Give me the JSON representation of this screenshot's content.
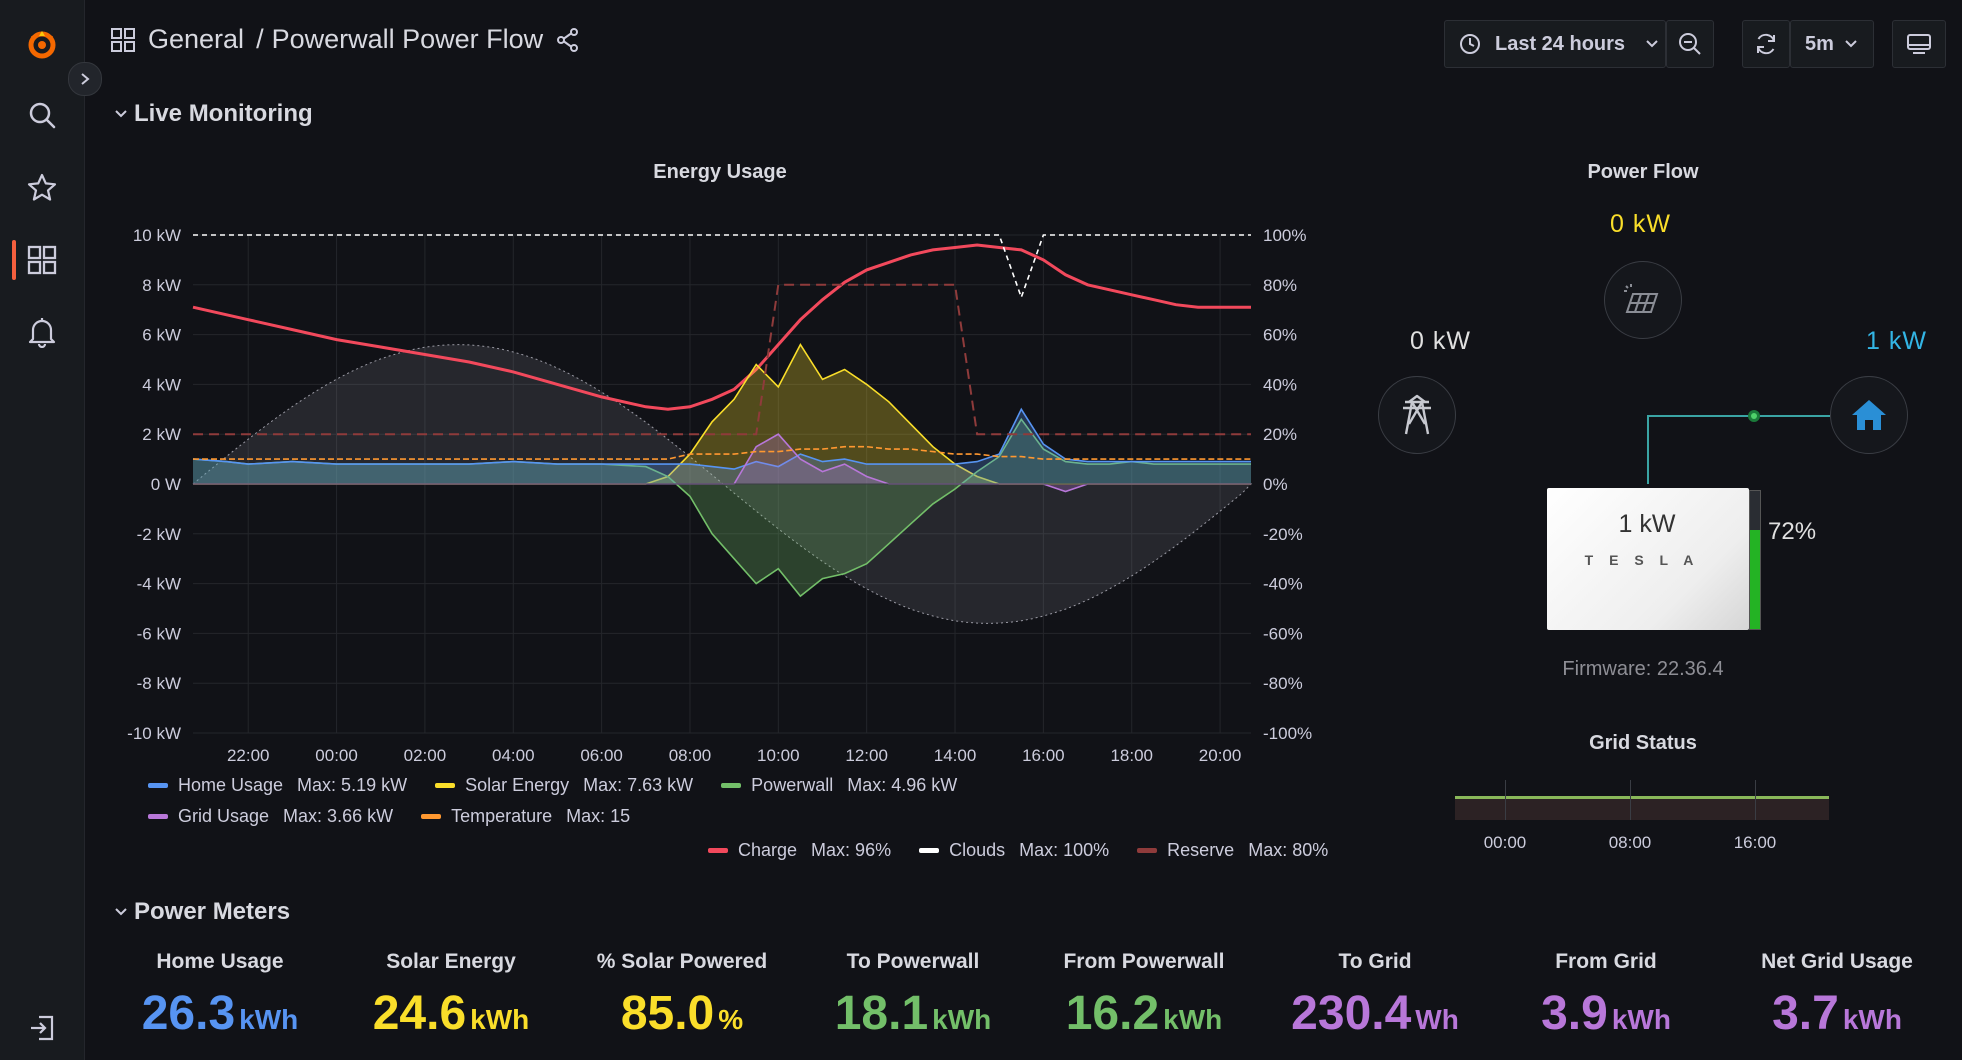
{
  "breadcrumb": {
    "folder": "General",
    "separator": "/",
    "dashboard": "Powerwall Power Flow"
  },
  "toolbar": {
    "time_range": "Last 24 hours",
    "refresh_interval": "5m"
  },
  "rows": {
    "live": "Live Monitoring",
    "meters": "Power Meters"
  },
  "energy_panel": {
    "title": "Energy Usage",
    "legend_primary": [
      {
        "name": "Home Usage",
        "max": "Max: 5.19 kW",
        "color": "#5794f2"
      },
      {
        "name": "Solar Energy",
        "max": "Max: 7.63 kW",
        "color": "#fade2a"
      },
      {
        "name": "Powerwall",
        "max": "Max: 4.96 kW",
        "color": "#73bf69"
      },
      {
        "name": "Grid Usage",
        "max": "Max: 3.66 kW",
        "color": "#b877d9"
      },
      {
        "name": "Temperature",
        "max": "Max: 15",
        "color": "#ff9830"
      }
    ],
    "legend_secondary": [
      {
        "name": "Charge",
        "max": "Max: 96%",
        "color": "#f2495c"
      },
      {
        "name": "Clouds",
        "max": "Max: 100%",
        "color": "#ffffff"
      },
      {
        "name": "Reserve",
        "max": "Max: 80%",
        "color": "#8f3b3b"
      }
    ]
  },
  "chart_data": {
    "type": "line",
    "title": "Energy Usage",
    "x_ticks": [
      "22:00",
      "00:00",
      "02:00",
      "04:00",
      "06:00",
      "08:00",
      "10:00",
      "12:00",
      "14:00",
      "16:00",
      "18:00",
      "20:00"
    ],
    "y_left_ticks": [
      "10 kW",
      "8 kW",
      "6 kW",
      "4 kW",
      "2 kW",
      "0 W",
      "-2 kW",
      "-4 kW",
      "-6 kW",
      "-8 kW",
      "-10 kW"
    ],
    "y_right_ticks": [
      "100%",
      "80%",
      "60%",
      "40%",
      "20%",
      "0%",
      "-20%",
      "-40%",
      "-60%",
      "-80%",
      "-100%"
    ],
    "ylim_left_kw": [
      -10,
      10
    ],
    "ylim_right_pct": [
      -100,
      100
    ],
    "x_hours": [
      20.75,
      21.5,
      22,
      23,
      24,
      25,
      26,
      27,
      28,
      29,
      30,
      31,
      31.5,
      32,
      32.5,
      33,
      33.5,
      34,
      34.5,
      35,
      35.5,
      36,
      36.5,
      37,
      37.5,
      38,
      38.5,
      39,
      39.5,
      40,
      40.5,
      41,
      41.5,
      42,
      42.5,
      43,
      43.5,
      44,
      44.7
    ],
    "series": [
      {
        "name": "Charge",
        "values": [
          71,
          68,
          66,
          62,
          58,
          55,
          52,
          49,
          45,
          40,
          35,
          31,
          30,
          31,
          34,
          38,
          46,
          56,
          66,
          74,
          81,
          86,
          89,
          92,
          94,
          95,
          96,
          95,
          94,
          90,
          84,
          80,
          78,
          76,
          74,
          72,
          71,
          71,
          71
        ]
      },
      {
        "name": "Solar Energy",
        "values": [
          0,
          0,
          0,
          0,
          0,
          0,
          0,
          0,
          0,
          0,
          0,
          0,
          0.3,
          1.2,
          2.5,
          3.4,
          4.8,
          3.9,
          5.6,
          4.2,
          4.6,
          4.0,
          3.3,
          2.4,
          1.5,
          0.8,
          0.3,
          0,
          0,
          0,
          0,
          0,
          0,
          0,
          0,
          0,
          0,
          0,
          0
        ]
      },
      {
        "name": "Powerwall",
        "values": [
          1.0,
          0.9,
          0.8,
          0.9,
          0.8,
          0.8,
          0.8,
          0.8,
          0.9,
          0.8,
          0.8,
          0.7,
          0.3,
          -0.5,
          -2.0,
          -3.0,
          -4.0,
          -3.4,
          -4.5,
          -3.8,
          -3.6,
          -3.2,
          -2.4,
          -1.6,
          -0.8,
          -0.2,
          0.5,
          1.1,
          2.6,
          1.4,
          0.9,
          0.8,
          0.8,
          0.9,
          0.8,
          0.8,
          0.8,
          0.8,
          0.8
        ]
      },
      {
        "name": "Home Usage",
        "values": [
          1.0,
          0.9,
          0.8,
          0.9,
          0.8,
          0.8,
          0.8,
          0.8,
          0.9,
          0.8,
          0.8,
          0.8,
          0.8,
          0.8,
          0.7,
          0.6,
          0.9,
          0.7,
          1.2,
          0.9,
          1.0,
          0.8,
          0.8,
          0.8,
          0.8,
          0.8,
          0.9,
          1.2,
          3.0,
          1.6,
          1.0,
          0.9,
          0.9,
          0.9,
          0.9,
          0.9,
          0.9,
          0.9,
          0.9
        ]
      },
      {
        "name": "Grid Usage",
        "values": [
          0,
          0,
          0,
          0,
          0,
          0,
          0,
          0,
          0,
          0,
          0,
          0,
          0,
          0,
          0,
          0,
          1.5,
          2.0,
          1.0,
          0.5,
          0.8,
          0.3,
          0,
          0,
          0,
          0,
          0,
          0,
          0,
          0,
          -0.3,
          0,
          0,
          0,
          0,
          0,
          0,
          0,
          0
        ]
      },
      {
        "name": "Temperature",
        "values": [
          1.0,
          1.0,
          1.0,
          1.0,
          1.0,
          1.0,
          1.0,
          1.0,
          1.0,
          1.0,
          1.0,
          1.0,
          1.0,
          1.2,
          1.2,
          1.2,
          1.3,
          1.3,
          1.4,
          1.4,
          1.5,
          1.5,
          1.4,
          1.4,
          1.3,
          1.2,
          1.2,
          1.1,
          1.1,
          1.0,
          1.0,
          1.0,
          1.0,
          1.0,
          1.0,
          1.0,
          1.0,
          1.0,
          1.0
        ]
      },
      {
        "name": "Clouds",
        "values": [
          100,
          100,
          100,
          100,
          100,
          100,
          100,
          100,
          100,
          100,
          100,
          100,
          100,
          100,
          100,
          100,
          100,
          100,
          100,
          100,
          100,
          100,
          100,
          100,
          100,
          100,
          100,
          100,
          75,
          100,
          100,
          100,
          100,
          100,
          100,
          100,
          100,
          100,
          100
        ]
      },
      {
        "name": "Reserve",
        "values": [
          20,
          20,
          20,
          20,
          20,
          20,
          20,
          20,
          20,
          20,
          20,
          20,
          20,
          20,
          20,
          20,
          20,
          80,
          80,
          80,
          80,
          80,
          80,
          80,
          80,
          80,
          20,
          20,
          20,
          20,
          20,
          20,
          20,
          20,
          20,
          20,
          20,
          20,
          20
        ]
      }
    ]
  },
  "power_flow": {
    "title": "Power Flow",
    "solar_value": "0 kW",
    "grid_value": "0 kW",
    "home_value": "1 kW",
    "powerwall_value": "1 kW",
    "powerwall_brand": "T E S L A",
    "battery_percent_label": "72%",
    "battery_level": 0.72,
    "firmware": "Firmware: 22.36.4",
    "colors": {
      "solar": "#fade2a",
      "home": "#33b5e5",
      "grid": "#e0e0e0",
      "battery": "#24b324"
    }
  },
  "grid_status": {
    "title": "Grid Status",
    "ticks": [
      "00:00",
      "08:00",
      "16:00"
    ]
  },
  "stats": [
    {
      "title": "Home Usage",
      "value": "26.3",
      "unit": "kWh",
      "color": "#5794f2"
    },
    {
      "title": "Solar Energy",
      "value": "24.6",
      "unit": "kWh",
      "color": "#fade2a"
    },
    {
      "title": "% Solar Powered",
      "value": "85.0",
      "unit": "%",
      "color": "#fade2a"
    },
    {
      "title": "To Powerwall",
      "value": "18.1",
      "unit": "kWh",
      "color": "#73bf69"
    },
    {
      "title": "From Powerwall",
      "value": "16.2",
      "unit": "kWh",
      "color": "#73bf69"
    },
    {
      "title": "To Grid",
      "value": "230.4",
      "unit": "Wh",
      "color": "#b877d9"
    },
    {
      "title": "From Grid",
      "value": "3.9",
      "unit": "kWh",
      "color": "#b877d9"
    },
    {
      "title": "Net Grid Usage",
      "value": "3.7",
      "unit": "kWh",
      "color": "#b877d9"
    }
  ]
}
